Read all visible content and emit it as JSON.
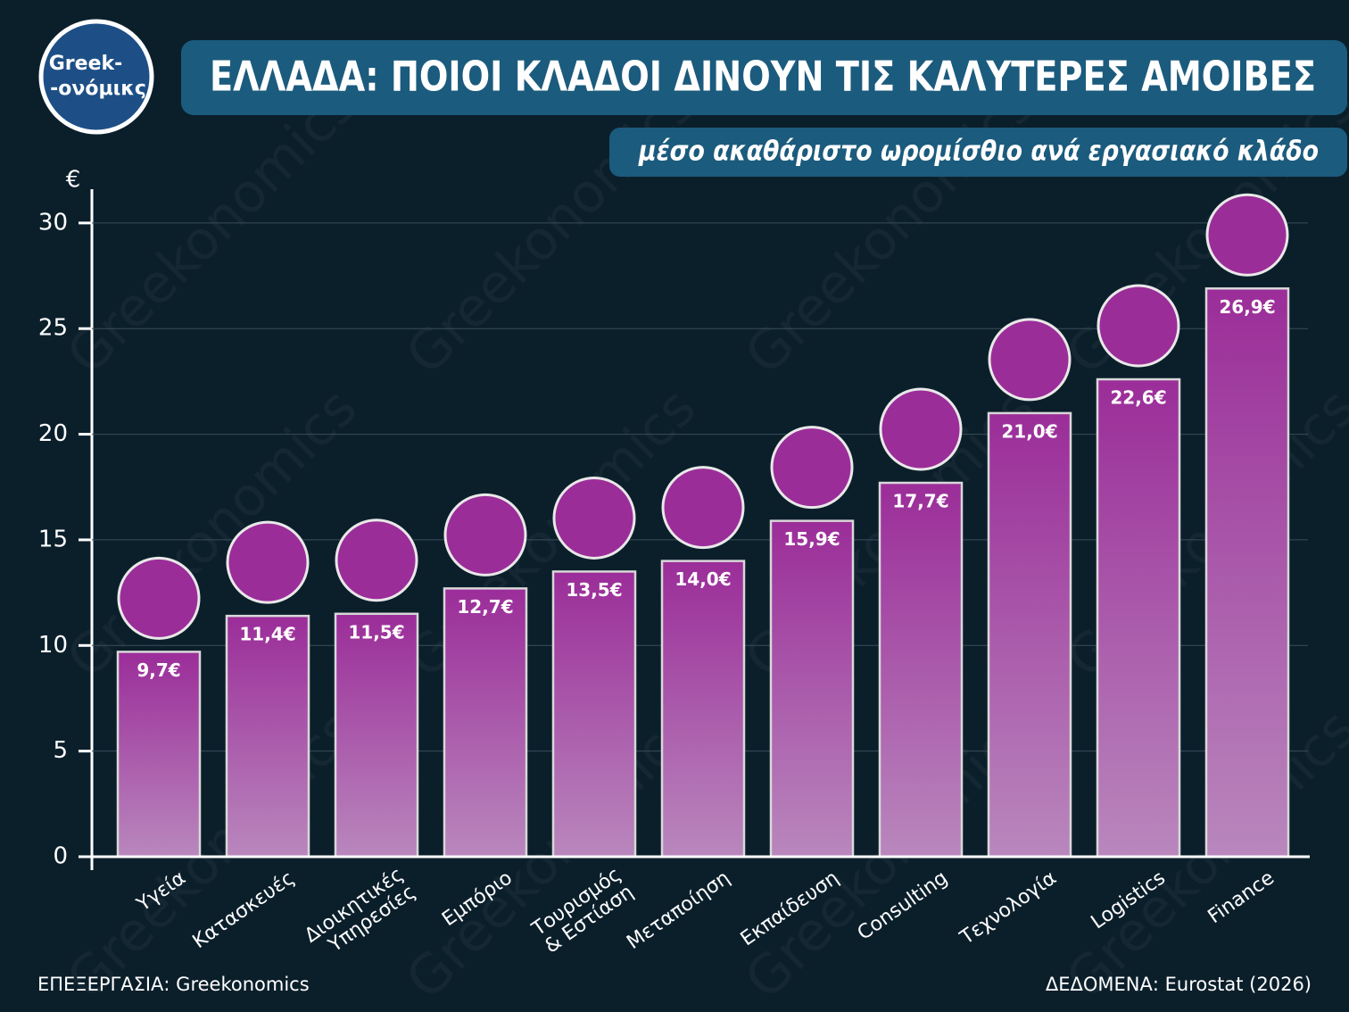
{
  "chart_data": {
    "type": "bar",
    "title": "ΕΛΛΑΔΑ: ΠΟΙΟΙ ΚΛΑΔΟΙ ΔΙΝΟΥΝ ΤΙΣ ΚΑΛΥΤΕΡΕΣ ΑΜΟΙΒΕΣ",
    "subtitle": "μέσο ακαθάριστο ωρομίσθιο ανά εργασιακό κλάδο",
    "y_unit": "€",
    "logo": [
      "Greek-",
      "-ονόμικς"
    ],
    "watermark": "Greekonomics",
    "credit": "ΕΠΕΞΕΡΓΑΣΙΑ: Greekonomics",
    "source": "ΔΕΔΟΜΕΝΑ: Eurostat (2026)",
    "categories": [
      "Υγεία",
      "Κατασκευές",
      "Διοικητικές\nΥπηρεσίες",
      "Εμπόριο",
      "Τουρισμός\n& Εστίαση",
      "Μεταποίηση",
      "Εκπαίδευση",
      "Consulting",
      "Τεχνολογία",
      "Logistics",
      "Finance"
    ],
    "values": [
      9.7,
      11.4,
      11.5,
      12.7,
      13.5,
      14.0,
      15.9,
      17.7,
      21.0,
      22.6,
      26.9
    ],
    "value_labels": [
      "9,7€",
      "11,4€",
      "11,5€",
      "12,7€",
      "13,5€",
      "14,0€",
      "15,9€",
      "17,7€",
      "21,0€",
      "22,6€",
      "26,9€"
    ],
    "color": "#9b2d99",
    "ylim": [
      0,
      31.6
    ],
    "yticks": [
      0,
      5,
      10,
      15,
      20,
      25,
      30
    ],
    "grid": true
  }
}
